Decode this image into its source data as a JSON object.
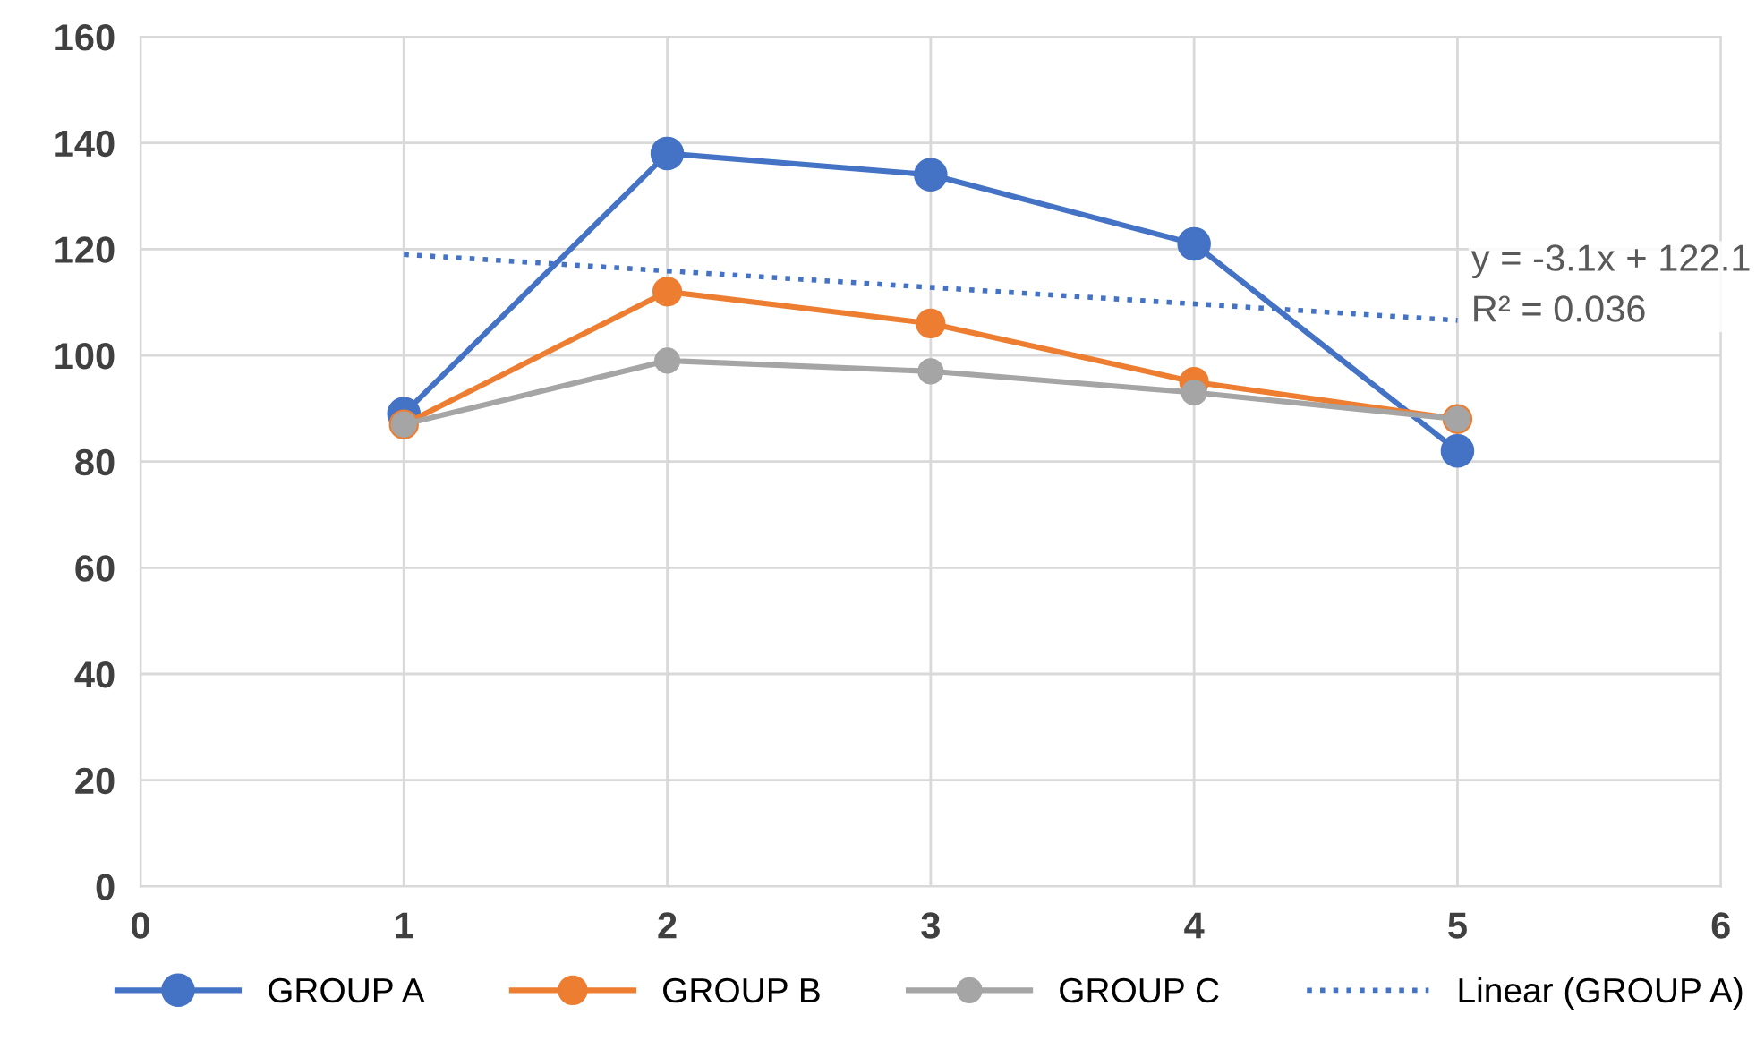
{
  "chart_data": {
    "type": "line",
    "x": [
      1,
      2,
      3,
      4,
      5
    ],
    "series": [
      {
        "name": "GROUP A",
        "color": "#4472c4",
        "values": [
          89,
          138,
          134,
          121,
          82
        ],
        "marker": "circle",
        "line_style": "solid"
      },
      {
        "name": "GROUP B",
        "color": "#ed7d31",
        "values": [
          87,
          112,
          106,
          95,
          88
        ],
        "marker": "circle",
        "line_style": "solid"
      },
      {
        "name": "GROUP C",
        "color": "#a5a5a5",
        "values": [
          87,
          99,
          97,
          93,
          88
        ],
        "marker": "circle",
        "line_style": "solid"
      },
      {
        "name": "Linear (GROUP A)",
        "color": "#4472c4",
        "x": [
          1,
          5
        ],
        "values": [
          119.0,
          106.6
        ],
        "marker": "none",
        "line_style": "dotted"
      }
    ],
    "xlim": [
      0,
      6
    ],
    "xticks": [
      0,
      1,
      2,
      3,
      4,
      5,
      6
    ],
    "ylim": [
      0,
      160
    ],
    "yticks": [
      0,
      20,
      40,
      60,
      80,
      100,
      120,
      140,
      160
    ],
    "grid": true,
    "legend": "bottom",
    "annotations": [
      "y = -3.1x + 122.1\nR² = 0.036"
    ]
  }
}
